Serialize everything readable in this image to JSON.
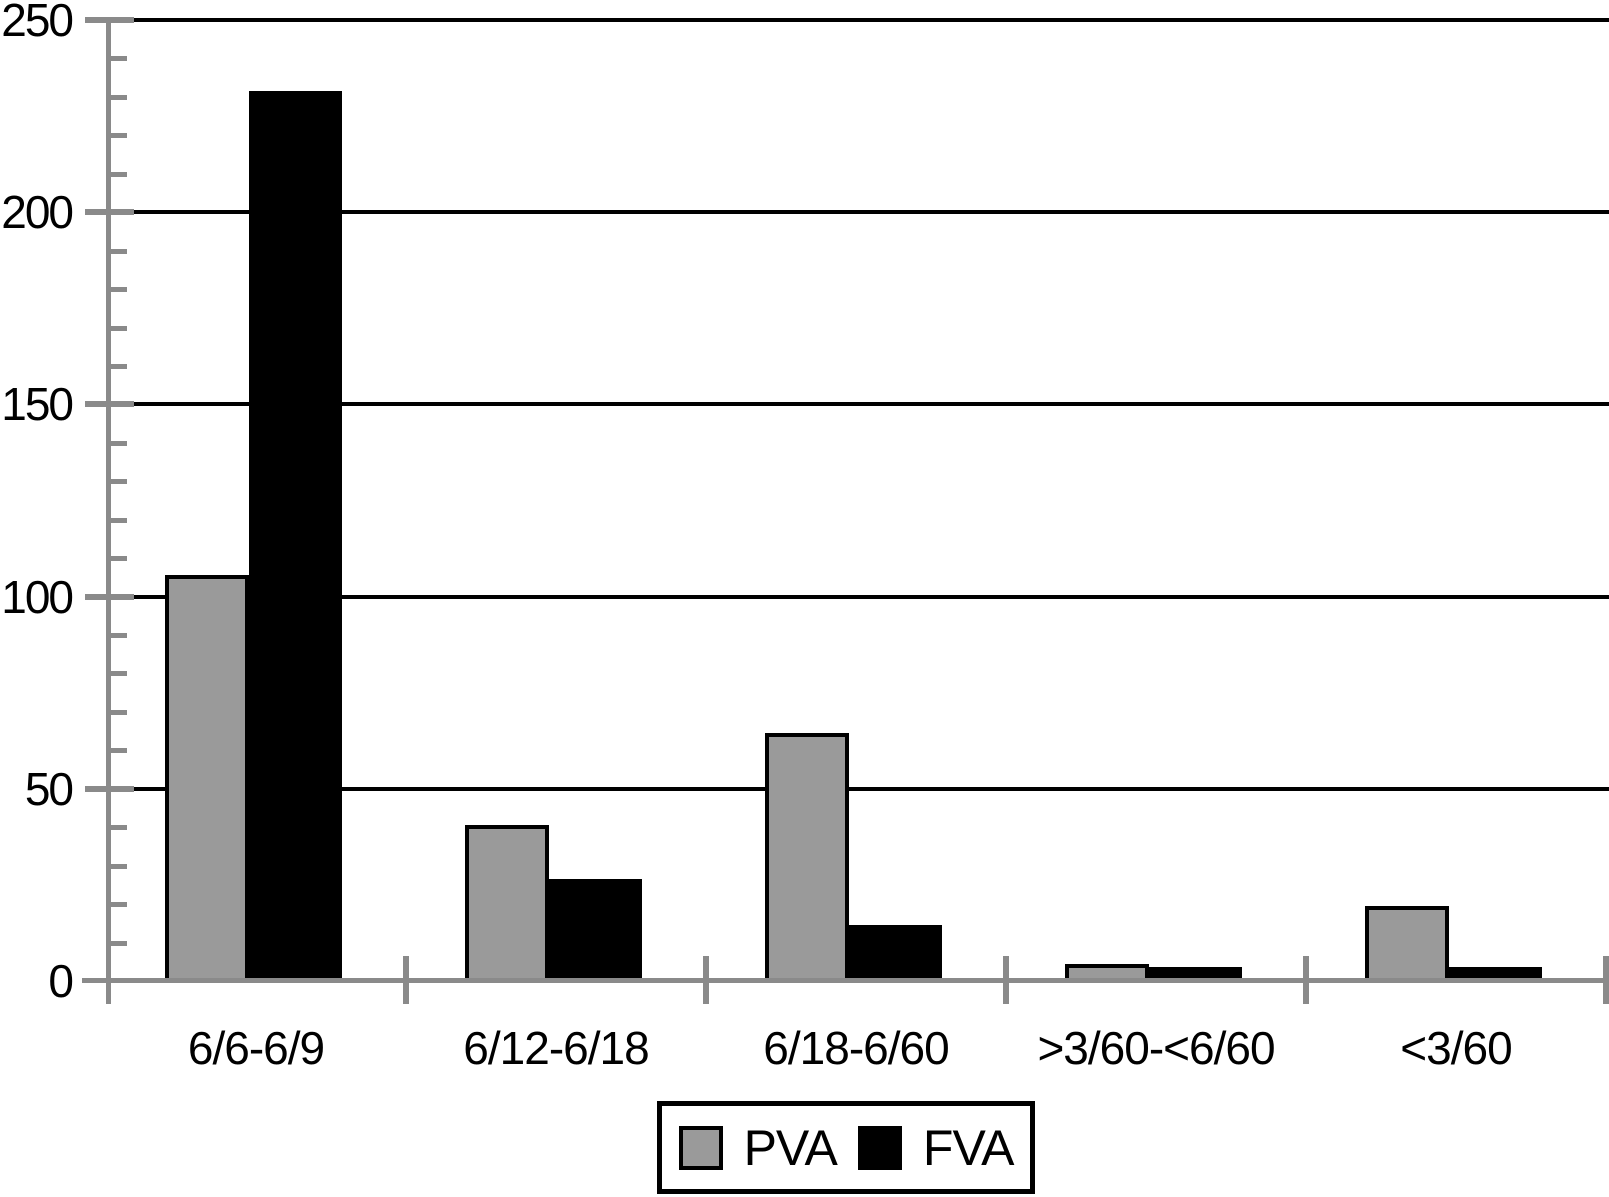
{
  "chart_data": {
    "type": "bar",
    "title": "",
    "xlabel": "",
    "ylabel": "",
    "categories": [
      "6/6-6/9",
      "6/12-6/18",
      "6/18-6/60",
      ">3/60-<6/60",
      "<3/60"
    ],
    "series": [
      {
        "name": "PVA",
        "color": "#9a9a9a",
        "values": [
          105,
          40,
          64,
          4,
          19
        ]
      },
      {
        "name": "FVA",
        "color": "#000000",
        "values": [
          231,
          26,
          14,
          3,
          3
        ]
      }
    ],
    "ylim": [
      0,
      250
    ],
    "y_major_step": 50,
    "y_minor_step": 10,
    "y_tick_labels": [
      "0",
      "50",
      "100",
      "150",
      "200",
      "250"
    ],
    "grid": "horizontal black gridlines at major ticks",
    "legend_position": "bottom-center",
    "legend": [
      "PVA",
      "FVA"
    ]
  },
  "colors": {
    "background": "#ffffff",
    "axis": "#8a8a8a",
    "gridline": "#000000",
    "bar_border": "#000000",
    "pva_fill": "#9a9a9a",
    "fva_fill": "#000000",
    "text": "#000000"
  }
}
